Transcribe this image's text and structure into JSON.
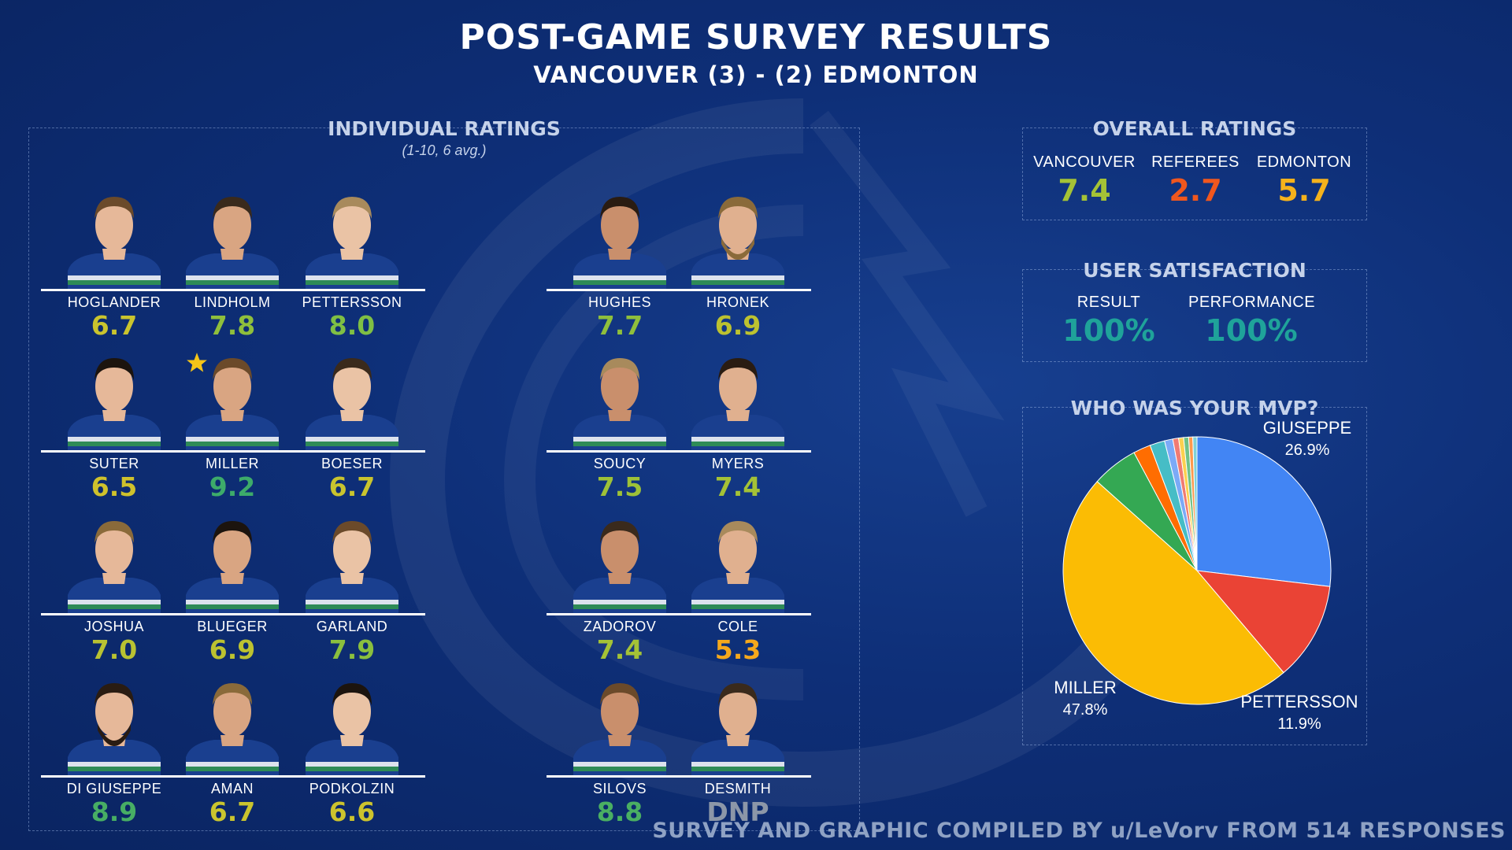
{
  "header": {
    "title": "POST-GAME SURVEY RESULTS",
    "subtitle": "VANCOUVER (3) - (2) EDMONTON"
  },
  "individual": {
    "title": "INDIVIDUAL RATINGS",
    "note": "(1-10, 6 avg.)",
    "players": [
      {
        "name": "HOGLANDER",
        "rating": "6.7",
        "color": "#c9c42e"
      },
      {
        "name": "LINDHOLM",
        "rating": "7.8",
        "color": "#8fbf3c"
      },
      {
        "name": "PETTERSSON",
        "rating": "8.0",
        "color": "#7fbf44"
      },
      {
        "name": "HUGHES",
        "rating": "7.7",
        "color": "#8fbf3c"
      },
      {
        "name": "HRONEK",
        "rating": "6.9",
        "color": "#bcc230"
      },
      {
        "name": "SUTER",
        "rating": "6.5",
        "color": "#cfc22c"
      },
      {
        "name": "MILLER",
        "rating": "9.2",
        "color": "#3dab6a"
      },
      {
        "name": "BOESER",
        "rating": "6.7",
        "color": "#c9c42e"
      },
      {
        "name": "SOUCY",
        "rating": "7.5",
        "color": "#9ec138"
      },
      {
        "name": "MYERS",
        "rating": "7.4",
        "color": "#a4c236"
      },
      {
        "name": "JOSHUA",
        "rating": "7.0",
        "color": "#b9c232"
      },
      {
        "name": "BLUEGER",
        "rating": "6.9",
        "color": "#bcc230"
      },
      {
        "name": "GARLAND",
        "rating": "7.9",
        "color": "#8abf3e"
      },
      {
        "name": "ZADOROV",
        "rating": "7.4",
        "color": "#a4c236"
      },
      {
        "name": "COLE",
        "rating": "5.3",
        "color": "#f5a81c"
      },
      {
        "name": "DI GIUSEPPE",
        "rating": "8.9",
        "color": "#47ae64"
      },
      {
        "name": "AMAN",
        "rating": "6.7",
        "color": "#c9c42e"
      },
      {
        "name": "PODKOLZIN",
        "rating": "6.6",
        "color": "#ccc32d"
      },
      {
        "name": "SILOVS",
        "rating": "8.8",
        "color": "#4aaf62"
      },
      {
        "name": "DESMITH",
        "rating": "DNP",
        "color": "#8c97a8"
      }
    ]
  },
  "overall": {
    "title": "OVERALL RATINGS",
    "items": [
      {
        "label": "VANCOUVER",
        "value": "7.4",
        "color": "#a4c236"
      },
      {
        "label": "REFEREES",
        "value": "2.7",
        "color": "#f0571e"
      },
      {
        "label": "EDMONTON",
        "value": "5.7",
        "color": "#f5b21c"
      }
    ]
  },
  "satisfaction": {
    "title": "USER SATISFACTION",
    "items": [
      {
        "label": "RESULT",
        "value": "100%",
        "color": "#1fa39a"
      },
      {
        "label": "PERFORMANCE",
        "value": "100%",
        "color": "#1fa39a"
      }
    ]
  },
  "footer": "SURVEY AND GRAPHIC COMPILED BY u/LeVorv FROM 514 RESPONSES",
  "chart_data": {
    "type": "pie",
    "title": "WHO WAS YOUR MVP?",
    "slices": [
      {
        "name": "GIUSEPPE",
        "value": 26.9,
        "label": "GIUSEPPE",
        "pct_label": "26.9%",
        "color": "#4285f4"
      },
      {
        "name": "PETTERSSON",
        "value": 11.9,
        "label": "PETTERSSON",
        "pct_label": "11.9%",
        "color": "#ea4335"
      },
      {
        "name": "MILLER",
        "value": 47.8,
        "label": "MILLER",
        "pct_label": "47.8%",
        "color": "#fbbc04"
      },
      {
        "name": "",
        "value": 5.6,
        "label": "",
        "pct_label": "",
        "color": "#34a853"
      },
      {
        "name": "",
        "value": 2.1,
        "label": "",
        "pct_label": "",
        "color": "#ff6d01"
      },
      {
        "name": "",
        "value": 1.8,
        "label": "",
        "pct_label": "",
        "color": "#46bdc6"
      },
      {
        "name": "",
        "value": 1.0,
        "label": "",
        "pct_label": "",
        "color": "#7baaf7"
      },
      {
        "name": "",
        "value": 0.7,
        "label": "",
        "pct_label": "",
        "color": "#f07b72"
      },
      {
        "name": "",
        "value": 0.6,
        "label": "",
        "pct_label": "",
        "color": "#fcd04f"
      },
      {
        "name": "",
        "value": 0.6,
        "label": "",
        "pct_label": "",
        "color": "#71c287"
      },
      {
        "name": "",
        "value": 0.5,
        "label": "",
        "pct_label": "",
        "color": "#ff994d"
      },
      {
        "name": "",
        "value": 0.5,
        "label": "",
        "pct_label": "",
        "color": "#7ed1d7"
      }
    ]
  }
}
